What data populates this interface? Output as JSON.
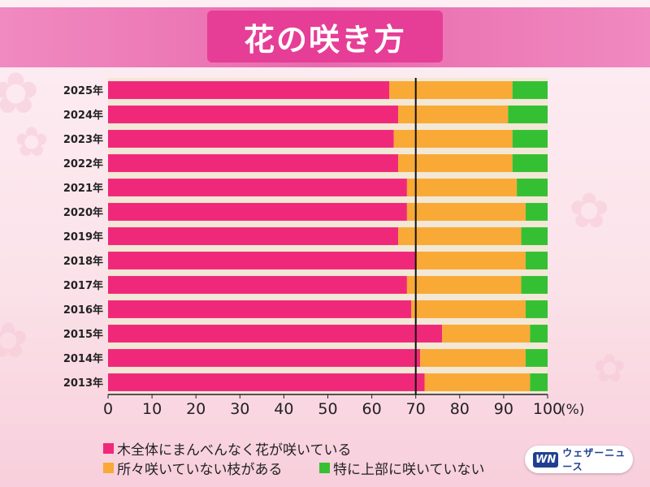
{
  "title": "花の咲き方",
  "chart_data": {
    "type": "bar",
    "orientation": "horizontal",
    "stacked": true,
    "categories": [
      "2025年",
      "2024年",
      "2023年",
      "2022年",
      "2021年",
      "2020年",
      "2019年",
      "2018年",
      "2017年",
      "2016年",
      "2015年",
      "2014年",
      "2013年"
    ],
    "series": [
      {
        "name": "木全体にまんべんなく花が咲いている",
        "color": "#f0287a",
        "values": [
          64,
          66,
          65,
          66,
          68,
          68,
          66,
          70,
          68,
          69,
          76,
          71,
          72
        ]
      },
      {
        "name": "所々咲いていない枝がある",
        "color": "#f9a935",
        "values": [
          28,
          25,
          27,
          26,
          25,
          27,
          28,
          25,
          26,
          26,
          20,
          24,
          24
        ]
      },
      {
        "name": "特に上部に咲いていない",
        "color": "#35c033",
        "values": [
          8,
          9,
          8,
          8,
          7,
          5,
          6,
          5,
          6,
          5,
          4,
          5,
          4
        ]
      }
    ],
    "xlim": [
      0,
      100
    ],
    "xticks": [
      "0",
      "10",
      "20",
      "30",
      "40",
      "50",
      "60",
      "70",
      "80",
      "90",
      "100"
    ],
    "x_unit": "(%)",
    "reference_line": 70,
    "grid": false,
    "legend_position": "bottom"
  },
  "legend": [
    {
      "label": "木全体にまんべんなく花が咲いている",
      "color": "#f0287a"
    },
    {
      "label": "所々咲いていない枝がある",
      "color": "#f9a935"
    },
    {
      "label": "特に上部に咲いていない",
      "color": "#35c033"
    }
  ],
  "logo": {
    "mark": "WN",
    "text": "ウェザーニュース"
  }
}
